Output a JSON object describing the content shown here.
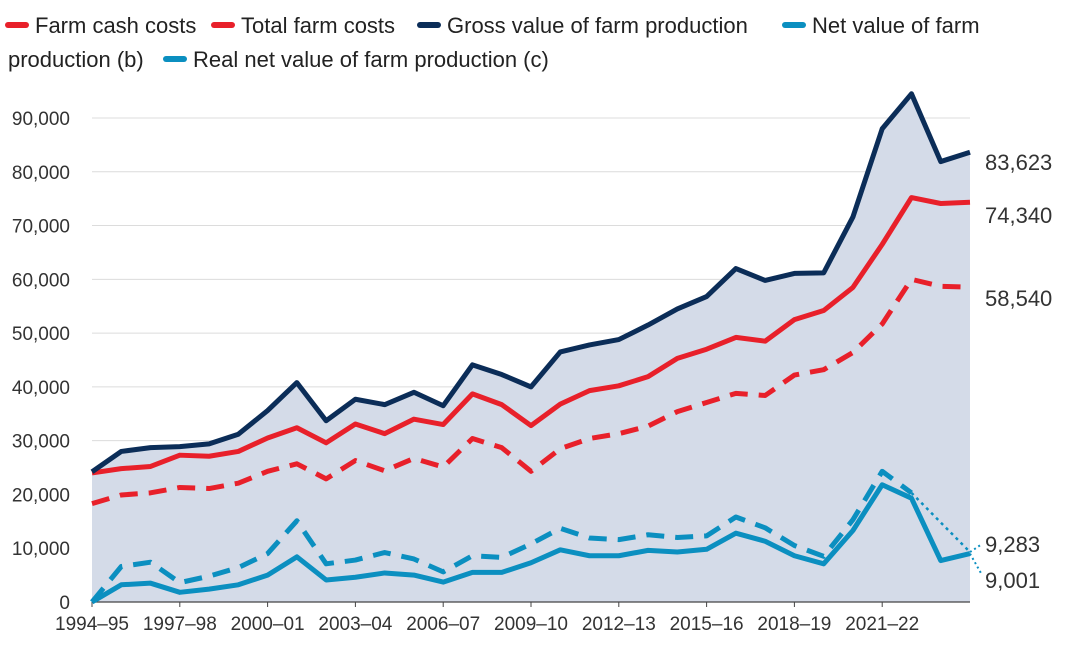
{
  "chart_data": {
    "type": "line",
    "title": "",
    "xlabel": "",
    "ylabel": "",
    "ylim": [
      0,
      90000
    ],
    "yticks": [
      0,
      10000,
      20000,
      30000,
      40000,
      50000,
      60000,
      70000,
      80000,
      90000
    ],
    "ytick_labels": [
      "0",
      "10,000",
      "20,000",
      "30,000",
      "40,000",
      "50,000",
      "60,000",
      "70,000",
      "80,000",
      "90,000"
    ],
    "x": [
      "1994–95",
      "1995–96",
      "1996–97",
      "1997–98",
      "1998–99",
      "1999–00",
      "2000–01",
      "2001–02",
      "2002–03",
      "2003–04",
      "2004–05",
      "2005–06",
      "2006–07",
      "2007–08",
      "2008–09",
      "2009–10",
      "2010–11",
      "2011–12",
      "2012–13",
      "2013–14",
      "2014–15",
      "2015–16",
      "2016–17",
      "2017–18",
      "2018–19",
      "2019–20",
      "2020–21",
      "2021–22",
      "2022–23",
      "2023–24",
      "2024–25"
    ],
    "xtick_labels": [
      "1994–95",
      "1997–98",
      "2000–01",
      "2003–04",
      "2006–07",
      "2009–10",
      "2012–13",
      "2015–16",
      "2018–19",
      "2021–22"
    ],
    "xtick_indices": [
      0,
      3,
      6,
      9,
      12,
      15,
      18,
      21,
      24,
      27
    ],
    "grid": true,
    "legend_position": "top",
    "legend": [
      {
        "label": "Farm cash costs",
        "color": "#e8202a",
        "dash": true
      },
      {
        "label": "Total farm costs",
        "color": "#e8202a",
        "dash": false
      },
      {
        "label": "Gross value of farm production",
        "color": "#0b2d58",
        "dash": false
      },
      {
        "label": "Net value of farm",
        "color": "#0b8fc0",
        "dash": false
      },
      {
        "label": "production (b)",
        "color": "",
        "dash": false
      },
      {
        "label": "Real net value of farm production (c)",
        "color": "#0b8fc0",
        "dash": true
      }
    ],
    "series": [
      {
        "name": "Gross value of farm production",
        "color": "#0b2d58",
        "dash": false,
        "shaded": true,
        "values": [
          24200,
          28000,
          28700,
          28900,
          29400,
          31200,
          35600,
          40800,
          33700,
          37700,
          36700,
          39000,
          36500,
          44100,
          42300,
          40000,
          46500,
          47800,
          48800,
          51500,
          54500,
          56800,
          62000,
          59800,
          61100,
          61200,
          71600,
          88000,
          94500,
          81900,
          83623
        ]
      },
      {
        "name": "Total farm costs",
        "color": "#e8202a",
        "dash": false,
        "values": [
          24000,
          24800,
          25200,
          27300,
          27100,
          28000,
          30500,
          32400,
          29600,
          33100,
          31300,
          34000,
          33000,
          38700,
          36700,
          32800,
          36800,
          39300,
          40200,
          41900,
          45300,
          47000,
          49200,
          48500,
          52500,
          54200,
          58500,
          66500,
          75200,
          74100,
          74340
        ]
      },
      {
        "name": "Farm cash costs",
        "color": "#e8202a",
        "dash": true,
        "values": [
          18300,
          19900,
          20300,
          21300,
          21100,
          22100,
          24300,
          25700,
          22900,
          26300,
          24400,
          26700,
          25100,
          30400,
          28700,
          24300,
          28500,
          30400,
          31300,
          32700,
          35400,
          37100,
          38800,
          38400,
          42200,
          43200,
          46400,
          51700,
          60000,
          58700,
          58540
        ]
      },
      {
        "name": "Net value of farm production (b)",
        "color": "#0b8fc0",
        "dash": false,
        "values": [
          0,
          3200,
          3500,
          1800,
          2400,
          3200,
          5000,
          8400,
          4100,
          4600,
          5400,
          5000,
          3700,
          5500,
          5500,
          7300,
          9700,
          8600,
          8600,
          9600,
          9300,
          9800,
          12800,
          11300,
          8600,
          7100,
          13300,
          21800,
          19300,
          7700,
          9001
        ]
      },
      {
        "name": "Real net value of farm production (c)",
        "color": "#0b8fc0",
        "dash": true,
        "values": [
          0,
          6600,
          7400,
          3600,
          4800,
          6400,
          9000,
          15100,
          7100,
          7800,
          9200,
          8000,
          5600,
          8600,
          8300,
          10800,
          13700,
          11900,
          11600,
          12500,
          12000,
          12300,
          15800,
          13800,
          10500,
          8500,
          15300,
          24300,
          20300,
          null,
          null
        ]
      }
    ],
    "end_labels": [
      {
        "series": "Gross value of farm production",
        "value": 83623,
        "label": "83,623"
      },
      {
        "series": "Total farm costs",
        "value": 74340,
        "label": "74,340"
      },
      {
        "series": "Farm cash costs",
        "value": 58540,
        "label": "58,540"
      },
      {
        "series": "Real net value of farm production (c)",
        "value": 9283,
        "label": "9,283"
      },
      {
        "series": "Net value of farm production (b)",
        "value": 9001,
        "label": "9,001"
      }
    ],
    "real_value_latest": 9283,
    "shade_color": "#d4dbe8"
  }
}
